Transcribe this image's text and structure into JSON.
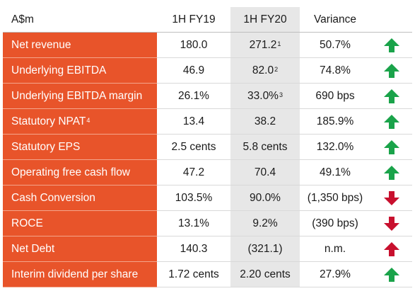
{
  "table": {
    "header": {
      "label": "A$m",
      "fy19": "1H FY19",
      "fy20": "1H FY20",
      "variance": "Variance"
    },
    "rows": [
      {
        "label": "Net revenue",
        "label_sup": "",
        "fy19": "180.0",
        "fy20": "271.2",
        "fy20_sup": "1",
        "variance": "50.7%",
        "trend": "up",
        "trend_color": "#1aa34a"
      },
      {
        "label": "Underlying EBITDA",
        "label_sup": "",
        "fy19": "46.9",
        "fy20": "82.0",
        "fy20_sup": "2",
        "variance": "74.8%",
        "trend": "up",
        "trend_color": "#1aa34a"
      },
      {
        "label": "Underlying EBITDA margin",
        "label_sup": "",
        "fy19": "26.1%",
        "fy20": "33.0%",
        "fy20_sup": "3",
        "variance": "690 bps",
        "trend": "up",
        "trend_color": "#1aa34a"
      },
      {
        "label": "Statutory NPAT",
        "label_sup": "4",
        "fy19": "13.4",
        "fy20": "38.2",
        "fy20_sup": "",
        "variance": "185.9%",
        "trend": "up",
        "trend_color": "#1aa34a"
      },
      {
        "label": "Statutory EPS",
        "label_sup": "",
        "fy19": "2.5 cents",
        "fy20": "5.8 cents",
        "fy20_sup": "",
        "variance": "132.0%",
        "trend": "up",
        "trend_color": "#1aa34a"
      },
      {
        "label": "Operating free cash flow",
        "label_sup": "",
        "fy19": "47.2",
        "fy20": "70.4",
        "fy20_sup": "",
        "variance": "49.1%",
        "trend": "up",
        "trend_color": "#1aa34a"
      },
      {
        "label": "Cash Conversion",
        "label_sup": "",
        "fy19": "103.5%",
        "fy20": "90.0%",
        "fy20_sup": "",
        "variance": "(1,350 bps)",
        "trend": "down",
        "trend_color": "#c8102e"
      },
      {
        "label": "ROCE",
        "label_sup": "",
        "fy19": "13.1%",
        "fy20": "9.2%",
        "fy20_sup": "",
        "variance": "(390 bps)",
        "trend": "down",
        "trend_color": "#c8102e"
      },
      {
        "label": "Net Debt",
        "label_sup": "",
        "fy19": "140.3",
        "fy20": "(321.1)",
        "fy20_sup": "",
        "variance": "n.m.",
        "trend": "up",
        "trend_color": "#c8102e"
      },
      {
        "label": "Interim dividend per share",
        "label_sup": "",
        "fy19": "1.72 cents",
        "fy20": "2.20 cents",
        "fy20_sup": "",
        "variance": "27.9%",
        "trend": "up",
        "trend_color": "#1aa34a"
      }
    ]
  },
  "colors": {
    "label_background": "#e8542a",
    "fy20_column_shade": "#e7e7e7"
  },
  "icons": {
    "up": "arrow-up-icon",
    "down": "arrow-down-icon"
  }
}
